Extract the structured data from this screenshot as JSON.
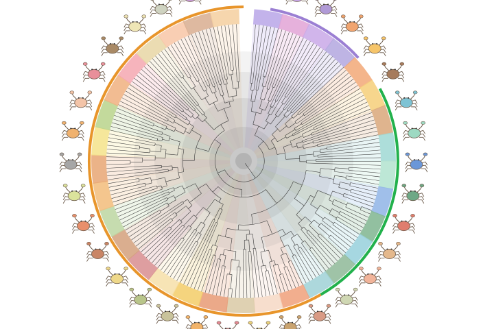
{
  "figure": {
    "type": "circular-phylogeny-with-crab-silhouettes",
    "background": "#ffffff"
  },
  "clade_arcs": [
    {
      "name": "outer-clade-purple",
      "color": "#9b7fd3",
      "start_deg": 10,
      "end_deg": 48
    },
    {
      "name": "outer-clade-green",
      "color": "#22b14c",
      "start_deg": 62,
      "end_deg": 150
    },
    {
      "name": "outer-clade-orange",
      "color": "#e8952b",
      "start_deg": 150,
      "end_deg": 360
    }
  ],
  "sector_colors": [
    "#b8a6e8",
    "#e2a3d6",
    "#c9a8e8",
    "#b3a7df",
    "#f2a877",
    "#f6cf79",
    "#d9a77a",
    "#9fd8d4",
    "#b2e3cf",
    "#8fb4e6",
    "#7fb58f",
    "#96d0dc",
    "#8eb898",
    "#9fd1d6",
    "#f0a07a",
    "#f6d8c4",
    "#d9c9a4",
    "#e89a74",
    "#f3cd67",
    "#f6dfa8",
    "#d88d8f",
    "#d3a07b",
    "#bcd6a1",
    "#f2bc7a",
    "#e8a673",
    "#f4e38a",
    "#b8d38b",
    "#f0b07f",
    "#f4a7b0",
    "#e7d6a4",
    "#f8c6a6",
    "#d8ad8f",
    "#f5cf9f"
  ],
  "tree": {
    "leaf_count": 220,
    "seed": 7,
    "line_color": "#3a3a3a"
  },
  "crab_icons": [
    {
      "name": "crab-icon",
      "color": "#c7a6e8"
    },
    {
      "name": "crab-icon",
      "color": "#b09ad6"
    },
    {
      "name": "crab-icon",
      "color": "#f0a46f"
    },
    {
      "name": "crab-icon",
      "color": "#f6c56a"
    },
    {
      "name": "crab-icon",
      "color": "#a67b5c"
    },
    {
      "name": "crab-icon",
      "color": "#7ec3d4"
    },
    {
      "name": "crab-icon",
      "color": "#9dd9c2"
    },
    {
      "name": "crab-icon",
      "color": "#6b97d8"
    },
    {
      "name": "crab-icon",
      "color": "#6ea886"
    },
    {
      "name": "crab-icon",
      "color": "#e07d6e"
    },
    {
      "name": "crab-icon",
      "color": "#e4b88c"
    },
    {
      "name": "crab-icon",
      "color": "#f1b49a"
    },
    {
      "name": "crab-icon",
      "color": "#cfd7b3"
    },
    {
      "name": "crab-icon",
      "color": "#d99a84"
    },
    {
      "name": "crab-icon",
      "color": "#c9a36f"
    },
    {
      "name": "crab-icon",
      "color": "#e9d27a"
    },
    {
      "name": "crab-icon",
      "color": "#e38a95"
    },
    {
      "name": "crab-icon",
      "color": "#f1b36a"
    },
    {
      "name": "crab-icon",
      "color": "#c9c39b"
    },
    {
      "name": "crab-icon",
      "color": "#b8c58a"
    },
    {
      "name": "crab-icon",
      "color": "#eed88a"
    },
    {
      "name": "crab-icon",
      "color": "#c98566"
    },
    {
      "name": "crab-icon",
      "color": "#e88f6b"
    },
    {
      "name": "crab-icon",
      "color": "#dbe39c"
    },
    {
      "name": "crab-icon",
      "color": "#a6a6a6"
    },
    {
      "name": "crab-icon",
      "color": "#f0b26f"
    },
    {
      "name": "crab-icon",
      "color": "#f3c4a8"
    },
    {
      "name": "crab-icon",
      "color": "#e88f9a"
    },
    {
      "name": "crab-icon",
      "color": "#a98a66"
    },
    {
      "name": "crab-icon",
      "color": "#efe6b6"
    },
    {
      "name": "crab-icon",
      "color": "#cfd3c1"
    },
    {
      "name": "crab-icon",
      "color": "#c79ad6"
    }
  ]
}
